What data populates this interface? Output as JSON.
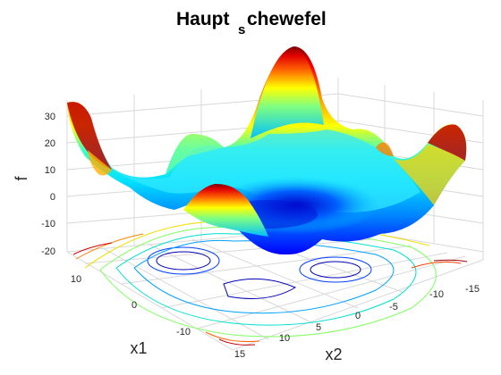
{
  "chart_data": {
    "type": "surface",
    "title_main": "Haupt",
    "title_subscript": "s",
    "title_rest": "chewefel",
    "xlabel": "x1",
    "ylabel": "x2",
    "zlabel": "f",
    "xlim": [
      -15,
      15
    ],
    "ylim": [
      -15,
      15
    ],
    "zlim": [
      -20,
      35
    ],
    "x_ticks": [
      "10",
      "0",
      "-10"
    ],
    "y_ticks": [
      "15",
      "10",
      "5",
      "0",
      "-5",
      "-10",
      "-15"
    ],
    "z_ticks": [
      "30",
      "20",
      "10",
      "0",
      "-10",
      "-20"
    ],
    "colormap": "jet",
    "contour_projection": true,
    "grid": true
  }
}
